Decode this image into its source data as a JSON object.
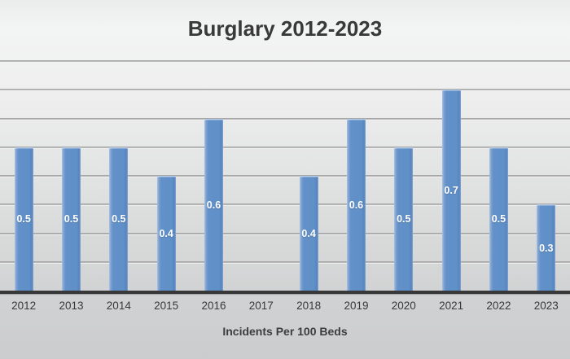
{
  "chart_data": {
    "type": "bar",
    "title": "Burglary 2012-2023",
    "xlabel": "Incidents Per 100 Beds",
    "ylabel": "",
    "categories": [
      "2012",
      "2013",
      "2014",
      "2015",
      "2016",
      "2017",
      "2018",
      "2019",
      "2020",
      "2021",
      "2022",
      "2023"
    ],
    "values": [
      0.5,
      0.5,
      0.5,
      0.4,
      0.6,
      null,
      0.4,
      0.6,
      0.5,
      0.7,
      0.5,
      0.3
    ],
    "data_labels": [
      "0.5",
      "0.5",
      "0.5",
      "0.4",
      "0.6",
      null,
      "0.4",
      "0.6",
      "0.5",
      "0.7",
      "0.5",
      "0.3"
    ],
    "ylim": [
      0,
      0.8
    ],
    "grid_step": 0.1,
    "grid_on": true,
    "legend_position": "none",
    "data_label_position": "inside-center",
    "colors": {
      "bar_fill": "#6290c8",
      "bar_edge": "#b7cbe6",
      "label_text": "#ffffff",
      "gridline": "#8f9090",
      "axis_line": "#383838",
      "title_text": "#393939",
      "tick_text": "#383838",
      "background_top": "#f3f4f4",
      "background_bottom": "#cbcccd"
    }
  }
}
